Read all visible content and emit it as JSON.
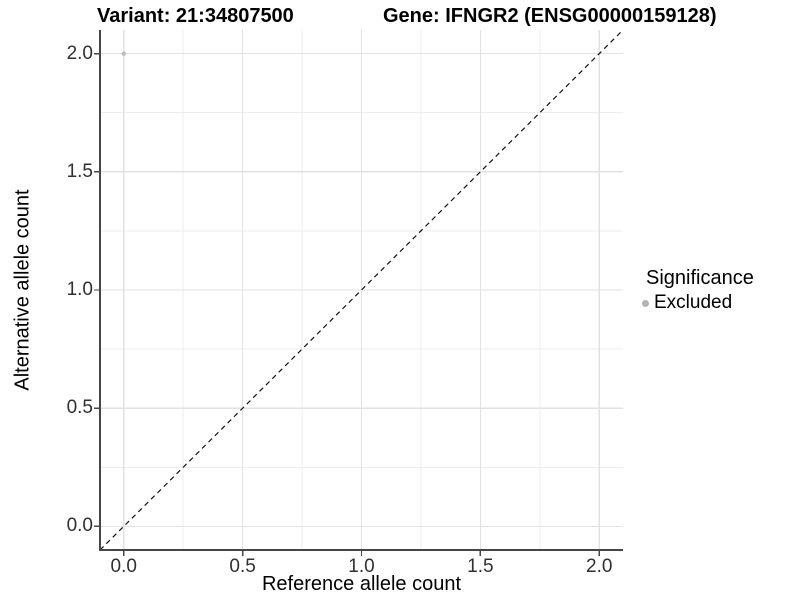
{
  "chart_data": {
    "type": "scatter",
    "titles": [
      "Variant: 21:34807500",
      "Gene: IFNGR2 (ENSG00000159128)"
    ],
    "xlabel": "Reference allele count",
    "ylabel": "Alternative allele count",
    "xlim": [
      -0.1,
      2.1
    ],
    "ylim": [
      -0.1,
      2.1
    ],
    "grid": true,
    "legend_position": "right",
    "x_ticks": {
      "values": [
        0.0,
        0.5,
        1.0,
        1.5,
        2.0
      ],
      "labels": [
        "0.0",
        "0.5",
        "1.0",
        "1.5",
        "2.0"
      ],
      "minor": [
        0.25,
        0.75,
        1.25,
        1.75
      ]
    },
    "y_ticks": {
      "values": [
        0.0,
        0.5,
        1.0,
        1.5,
        2.0
      ],
      "labels": [
        "0.0",
        "0.5",
        "1.0",
        "1.5",
        "2.0"
      ],
      "minor": [
        0.25,
        0.75,
        1.25,
        1.75
      ]
    },
    "series": [
      {
        "name": "Excluded",
        "color": "#bdbdbd",
        "point_radius": 2.2,
        "points": [
          {
            "x": 0.0,
            "y": 2.0
          }
        ]
      }
    ],
    "reference_line": {
      "kind": "identity",
      "from": [
        -0.1,
        -0.1
      ],
      "to": [
        2.1,
        2.1
      ],
      "style": "dashed",
      "color": "#111111"
    }
  },
  "legend": {
    "title": "Significance",
    "items": [
      {
        "label": "Excluded",
        "swatch_color": "#b3b3b3"
      }
    ]
  },
  "colors": {
    "background": "#ffffff",
    "grid_major": "#e2e2e2",
    "grid_minor": "#ededed",
    "axis_line": "#464646",
    "tick_mark": "#464646",
    "tick_text": "#303030",
    "title_text": "#000000"
  }
}
